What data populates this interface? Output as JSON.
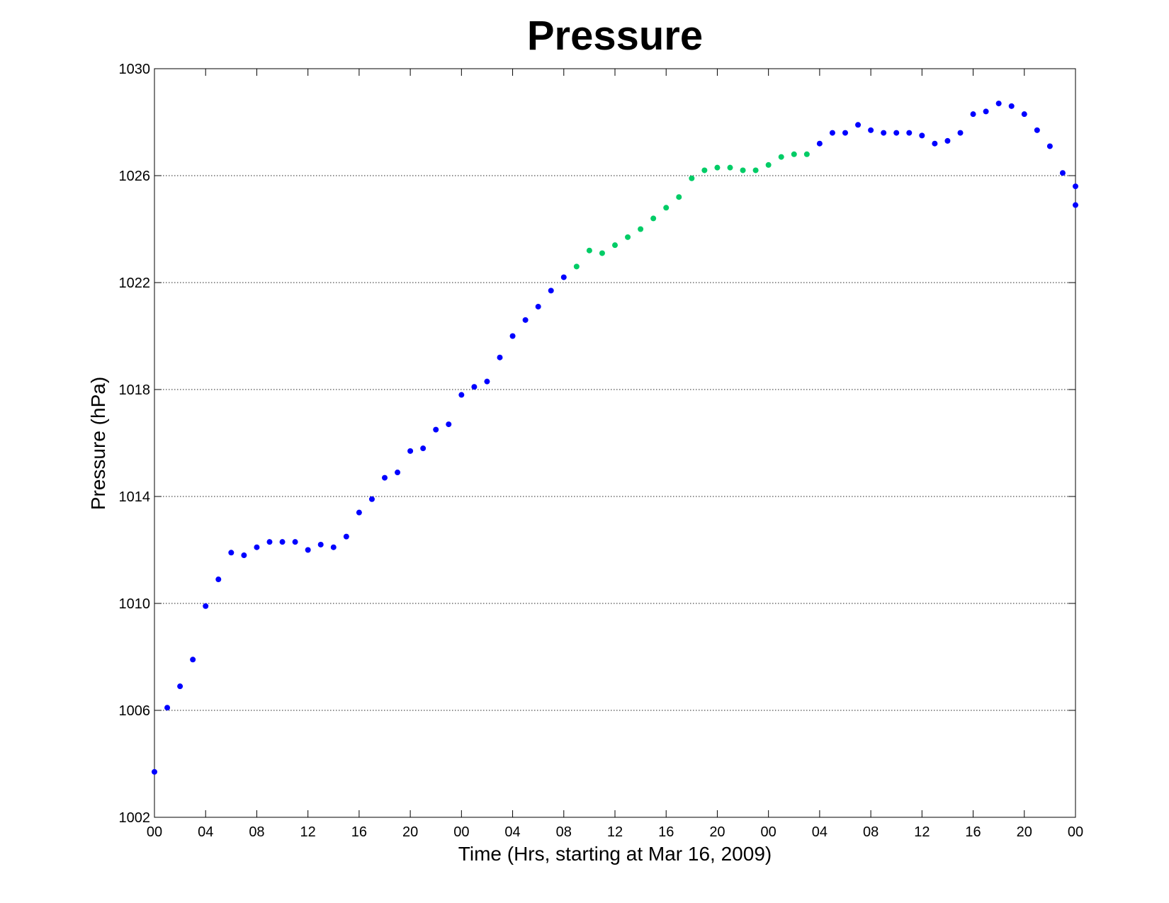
{
  "chart_data": {
    "type": "scatter",
    "title": "Pressure",
    "xlabel": "Time (Hrs, starting at Mar 16, 2009)",
    "ylabel": "Pressure (hPa)",
    "xlim": [
      0,
      72
    ],
    "ylim": [
      1002,
      1030
    ],
    "x_tick_labels": [
      "00",
      "04",
      "08",
      "12",
      "16",
      "20",
      "00",
      "04",
      "08",
      "12",
      "16",
      "20",
      "00",
      "04",
      "08",
      "12",
      "16",
      "20",
      "00"
    ],
    "y_tick_labels": [
      "1002",
      "1006",
      "1010",
      "1014",
      "1018",
      "1022",
      "1026",
      "1030"
    ],
    "grid": "y-major dotted",
    "legend": "none",
    "series": [
      {
        "color": "#0000ff",
        "x": [
          0,
          1,
          2,
          3,
          4,
          5,
          6,
          7,
          8,
          9,
          10,
          11,
          12,
          13,
          14,
          15,
          16,
          17,
          18,
          19,
          20,
          21,
          22,
          23,
          24,
          25,
          26,
          27,
          28,
          29,
          30,
          31,
          32
        ],
        "y": [
          1003.7,
          1006.1,
          1006.9,
          1007.9,
          1009.9,
          1010.9,
          1011.9,
          1011.8,
          1012.1,
          1012.3,
          1012.3,
          1012.3,
          1012.0,
          1012.2,
          1012.1,
          1012.5,
          1013.4,
          1013.9,
          1014.7,
          1014.9,
          1015.7,
          1015.8,
          1016.5,
          1016.7,
          1017.8,
          1018.1,
          1018.3,
          1019.2,
          1020.0,
          1020.6,
          1021.1,
          1021.7,
          1022.2
        ]
      },
      {
        "color": "#00cc66",
        "x": [
          33,
          34,
          35,
          36,
          37,
          38,
          39,
          40,
          41,
          42,
          43,
          44,
          45,
          46,
          47,
          48,
          49,
          50,
          51
        ],
        "y": [
          1022.6,
          1023.2,
          1023.1,
          1023.4,
          1023.7,
          1024.0,
          1024.4,
          1024.8,
          1025.2,
          1025.9,
          1026.2,
          1026.3,
          1026.3,
          1026.2,
          1026.2,
          1026.4,
          1026.7,
          1026.8,
          1026.8
        ]
      },
      {
        "color": "#0000ff",
        "x": [
          52,
          53,
          54,
          55,
          56,
          57,
          58,
          59,
          60,
          61,
          62,
          63,
          64,
          65,
          66,
          67,
          68,
          69,
          70,
          71,
          72
        ],
        "y": [
          1027.2,
          1027.6,
          1027.6,
          1027.9,
          1027.7,
          1027.6,
          1027.6,
          1027.6,
          1027.5,
          1027.2,
          1027.3,
          1027.6,
          1028.3,
          1028.4,
          1028.7,
          1028.6,
          1028.3,
          1027.7,
          1027.1,
          1026.1,
          1025.6
        ]
      }
    ],
    "extra_points": {
      "x": [
        72
      ],
      "y": [
        1024.9
      ],
      "color": "#0000ff"
    }
  }
}
